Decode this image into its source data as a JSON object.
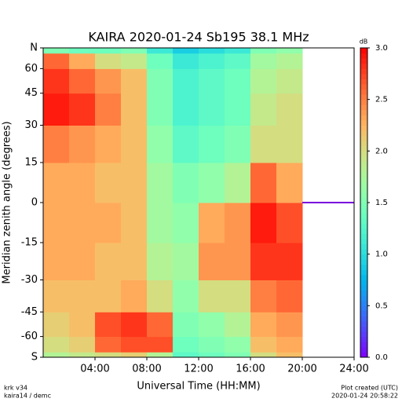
{
  "chart_data": {
    "type": "heatmap",
    "title": "KAIRA   2020-01-24   Sb195   38.1 MHz",
    "x_label": "Universal Time (HH:MM)",
    "y_label": "Meridian zenith angle (degrees)",
    "colorbar_label": "dB",
    "footer_left": [
      "krk v34",
      "kaira14 / demc"
    ],
    "footer_right": [
      "Plot created (UTC)",
      "2020-01-24 20:58:22"
    ],
    "xlim": [
      0,
      24
    ],
    "xticks": [
      {
        "value": 4,
        "label": "04:00"
      },
      {
        "value": 8,
        "label": "08:00"
      },
      {
        "value": 12,
        "label": "12:00"
      },
      {
        "value": 16,
        "label": "16:00"
      },
      {
        "value": 20,
        "label": "20:00"
      },
      {
        "value": 24,
        "label": "24:00"
      }
    ],
    "ylim": [
      -90,
      90
    ],
    "yscale": "sine",
    "yticks": [
      {
        "value": -90,
        "label": "S"
      },
      -60,
      -45,
      -30,
      -15,
      0,
      15,
      30,
      45,
      60,
      {
        "value": 90,
        "label": "N"
      }
    ],
    "zlim": [
      0,
      3
    ],
    "zticks": [
      {
        "value": 0,
        "label": "0.0"
      },
      {
        "value": 0.5,
        "label": "0.5"
      },
      {
        "value": 1,
        "label": "1.0"
      },
      {
        "value": 1.5,
        "label": "1.5"
      },
      {
        "value": 2,
        "label": "2.0"
      },
      {
        "value": 2.5,
        "label": "2.5"
      },
      {
        "value": 3,
        "label": "3.0"
      }
    ],
    "xbins": [
      0,
      2,
      4,
      6,
      8,
      10,
      12,
      14,
      16,
      18,
      20
    ],
    "ybins": [
      -90,
      -75,
      -60,
      -45,
      -30,
      -15,
      0,
      15,
      30,
      45,
      60,
      75,
      90
    ],
    "z": [
      [
        1.8,
        1.9,
        2.0,
        2.1,
        1.8,
        1.3,
        1.4,
        1.5,
        2.0,
        2.2
      ],
      [
        2.0,
        2.1,
        2.6,
        2.7,
        2.7,
        1.4,
        1.5,
        1.6,
        2.2,
        2.3
      ],
      [
        2.1,
        2.2,
        2.7,
        2.8,
        2.6,
        1.5,
        1.6,
        1.8,
        2.3,
        2.4
      ],
      [
        2.2,
        2.2,
        2.2,
        2.3,
        2.0,
        1.6,
        2.0,
        2.0,
        2.5,
        2.6
      ],
      [
        2.3,
        2.3,
        2.2,
        2.2,
        1.8,
        1.7,
        2.4,
        2.4,
        2.8,
        2.8
      ],
      [
        2.3,
        2.3,
        2.3,
        2.2,
        1.7,
        1.6,
        2.3,
        2.4,
        2.9,
        2.7
      ],
      [
        2.3,
        2.3,
        2.2,
        2.2,
        1.7,
        1.5,
        1.6,
        1.8,
        2.6,
        2.3
      ],
      [
        2.5,
        2.4,
        2.3,
        2.2,
        1.6,
        1.3,
        1.4,
        1.5,
        2.0,
        2.0
      ],
      [
        2.9,
        2.8,
        2.5,
        2.2,
        1.5,
        1.2,
        1.3,
        1.4,
        1.9,
        2.0
      ],
      [
        2.8,
        2.6,
        2.4,
        2.2,
        1.5,
        1.2,
        1.3,
        1.4,
        1.8,
        1.9
      ],
      [
        2.6,
        2.3,
        2.0,
        1.9,
        1.4,
        1.1,
        1.2,
        1.3,
        1.7,
        1.8
      ],
      [
        1.5,
        1.4,
        1.4,
        1.5,
        1.1,
        0.9,
        1.0,
        1.1,
        1.5,
        1.6
      ]
    ],
    "trace": {
      "x": [
        20,
        24
      ],
      "y": [
        0,
        0
      ],
      "color": "#7a00dd"
    }
  }
}
